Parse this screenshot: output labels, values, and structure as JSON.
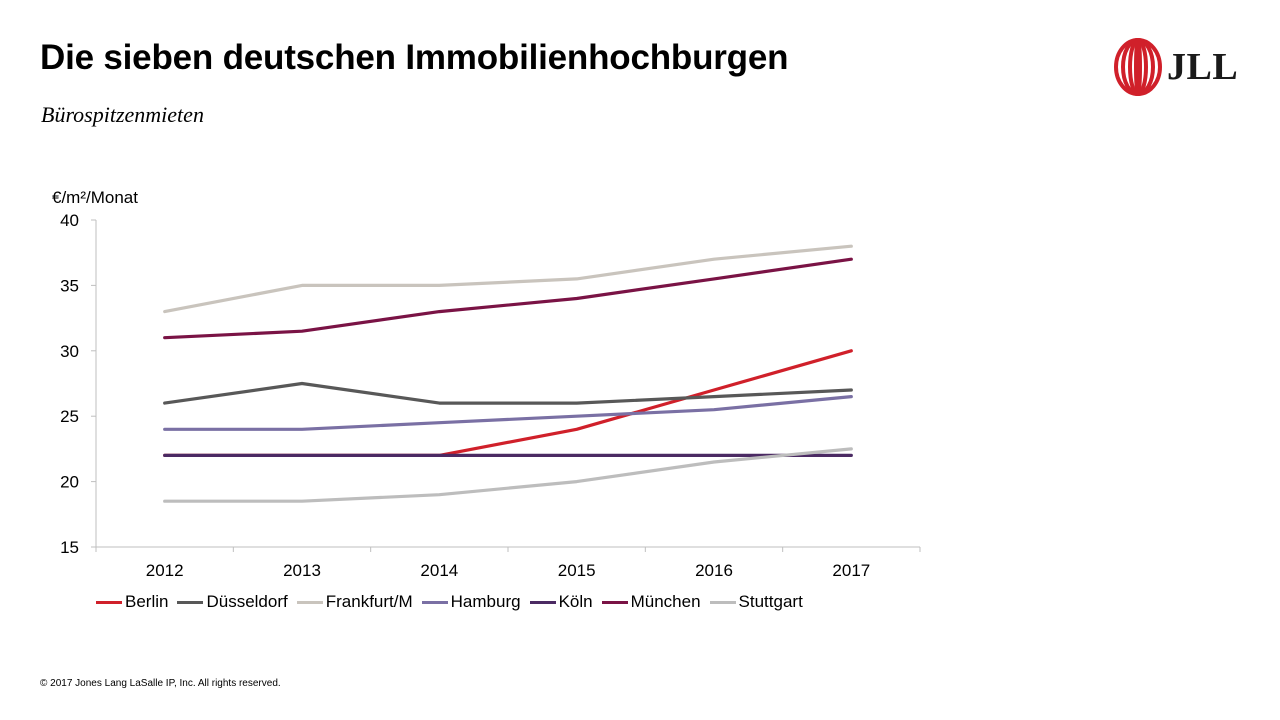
{
  "header": {
    "title": "Die sieben deutschen Immobilienhochburgen",
    "subtitle": "Bürospitzenmieten"
  },
  "logo": {
    "text": "JLL",
    "icon": "jll-ribbon-logo",
    "color": "#d0202a"
  },
  "chart_data": {
    "type": "line",
    "title": "",
    "ylabel": "€/m²/Monat",
    "xlabel": "",
    "x": [
      "2012",
      "2013",
      "2014",
      "2015",
      "2016",
      "2017"
    ],
    "ylim": [
      15,
      40
    ],
    "yticks": [
      15,
      20,
      25,
      30,
      35,
      40
    ],
    "grid": false,
    "legend": "bottom",
    "series": [
      {
        "name": "Berlin",
        "color": "#d0202a",
        "values": [
          22,
          22,
          22,
          24,
          27,
          30
        ]
      },
      {
        "name": "Düsseldorf",
        "color": "#585858",
        "values": [
          26,
          27.5,
          26,
          26,
          26.5,
          27
        ]
      },
      {
        "name": "Frankfurt/M",
        "color": "#c9c4bd",
        "values": [
          33,
          35,
          35,
          35.5,
          37,
          38
        ]
      },
      {
        "name": "Hamburg",
        "color": "#7a70a4",
        "values": [
          24,
          24,
          24.5,
          25,
          25.5,
          26.5
        ]
      },
      {
        "name": "Köln",
        "color": "#4b2a63",
        "values": [
          22,
          22,
          22,
          22,
          22,
          22
        ]
      },
      {
        "name": "München",
        "color": "#7a1345",
        "values": [
          31,
          31.5,
          33,
          34,
          35.5,
          37
        ]
      },
      {
        "name": "Stuttgart",
        "color": "#bdbdbd",
        "values": [
          18.5,
          18.5,
          19,
          20,
          21.5,
          22.5
        ]
      }
    ]
  },
  "footer": {
    "copyright": "© 2017 Jones Lang LaSalle IP, Inc. All rights reserved."
  }
}
